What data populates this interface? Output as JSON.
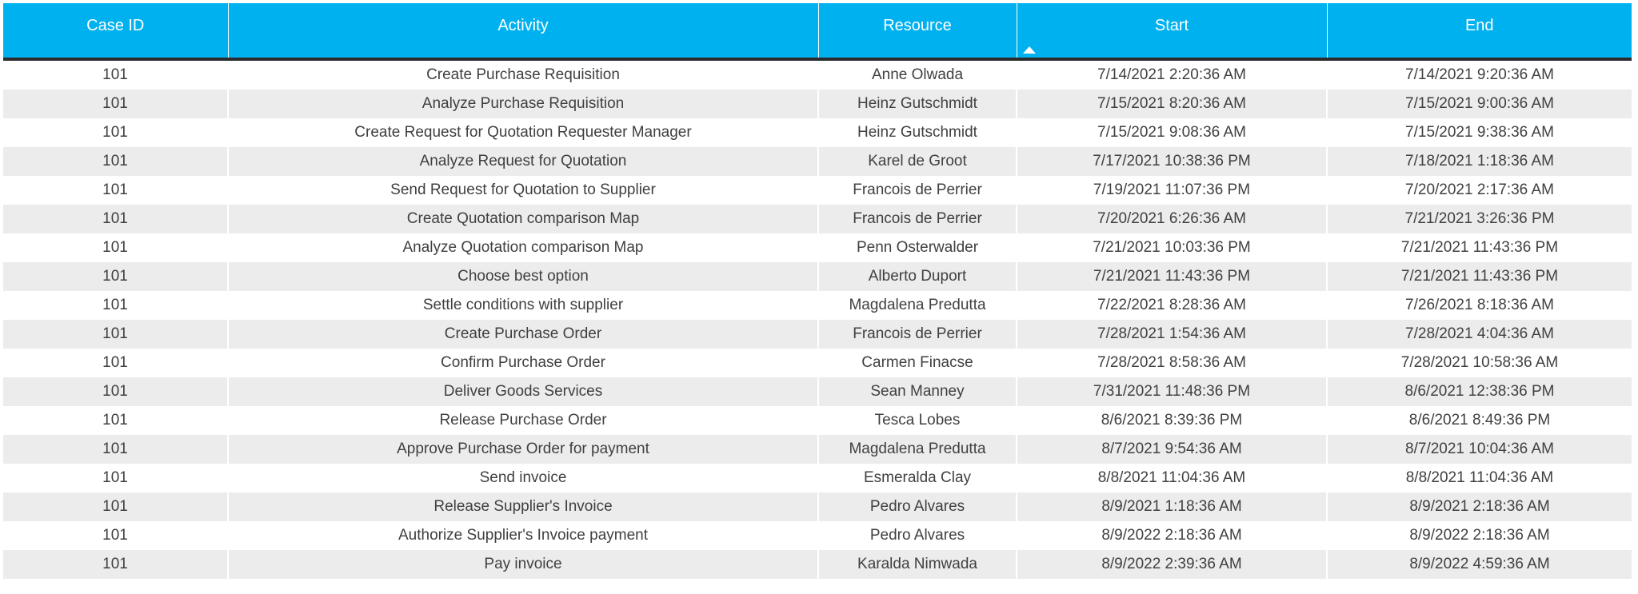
{
  "table": {
    "columns": [
      {
        "key": "case_id",
        "label": "Case ID"
      },
      {
        "key": "activity",
        "label": "Activity"
      },
      {
        "key": "resource",
        "label": "Resource"
      },
      {
        "key": "start",
        "label": "Start"
      },
      {
        "key": "end",
        "label": "End"
      }
    ],
    "sort": {
      "column": "Start",
      "direction": "ascending"
    },
    "rows": [
      [
        "101",
        "Create Purchase Requisition",
        "Anne Olwada",
        "7/14/2021 2:20:36 AM",
        "7/14/2021 9:20:36 AM"
      ],
      [
        "101",
        "Analyze Purchase Requisition",
        "Heinz Gutschmidt",
        "7/15/2021 8:20:36 AM",
        "7/15/2021 9:00:36 AM"
      ],
      [
        "101",
        "Create Request for Quotation Requester Manager",
        "Heinz Gutschmidt",
        "7/15/2021 9:08:36 AM",
        "7/15/2021 9:38:36 AM"
      ],
      [
        "101",
        "Analyze Request for Quotation",
        "Karel de Groot",
        "7/17/2021 10:38:36 PM",
        "7/18/2021 1:18:36 AM"
      ],
      [
        "101",
        "Send Request for Quotation to Supplier",
        "Francois de Perrier",
        "7/19/2021 11:07:36 PM",
        "7/20/2021 2:17:36 AM"
      ],
      [
        "101",
        "Create Quotation comparison Map",
        "Francois de Perrier",
        "7/20/2021 6:26:36 AM",
        "7/21/2021 3:26:36 PM"
      ],
      [
        "101",
        "Analyze Quotation comparison Map",
        "Penn Osterwalder",
        "7/21/2021 10:03:36 PM",
        "7/21/2021 11:43:36 PM"
      ],
      [
        "101",
        "Choose best option",
        "Alberto Duport",
        "7/21/2021 11:43:36 PM",
        "7/21/2021 11:43:36 PM"
      ],
      [
        "101",
        "Settle conditions with supplier",
        "Magdalena Predutta",
        "7/22/2021 8:28:36 AM",
        "7/26/2021 8:18:36 AM"
      ],
      [
        "101",
        "Create Purchase Order",
        "Francois de Perrier",
        "7/28/2021 1:54:36 AM",
        "7/28/2021 4:04:36 AM"
      ],
      [
        "101",
        "Confirm Purchase Order",
        "Carmen Finacse",
        "7/28/2021 8:58:36 AM",
        "7/28/2021 10:58:36 AM"
      ],
      [
        "101",
        "Deliver Goods Services",
        "Sean Manney",
        "7/31/2021 11:48:36 PM",
        "8/6/2021 12:38:36 PM"
      ],
      [
        "101",
        "Release Purchase Order",
        "Tesca Lobes",
        "8/6/2021 8:39:36 PM",
        "8/6/2021 8:49:36 PM"
      ],
      [
        "101",
        "Approve Purchase Order for payment",
        "Magdalena Predutta",
        "8/7/2021 9:54:36 AM",
        "8/7/2021 10:04:36 AM"
      ],
      [
        "101",
        "Send invoice",
        "Esmeralda Clay",
        "8/8/2021 11:04:36 AM",
        "8/8/2021 11:04:36 AM"
      ],
      [
        "101",
        "Release Supplier's Invoice",
        "Pedro Alvares",
        "8/9/2021 1:18:36 AM",
        "8/9/2021 2:18:36 AM"
      ],
      [
        "101",
        "Authorize Supplier's Invoice payment",
        "Pedro Alvares",
        "8/9/2022 2:18:36 AM",
        "8/9/2022 2:18:36 AM"
      ],
      [
        "101",
        "Pay invoice",
        "Karalda Nimwada",
        "8/9/2022 2:39:36 AM",
        "8/9/2022 4:59:36 AM"
      ]
    ]
  },
  "colors": {
    "header_bg": "#00B1F0",
    "header_text": "#FFFFFF",
    "row_bg": "#FFFFFF",
    "row_alt_bg": "#ECECEC",
    "body_text": "#404040",
    "header_separator": "#2B2B2B"
  }
}
